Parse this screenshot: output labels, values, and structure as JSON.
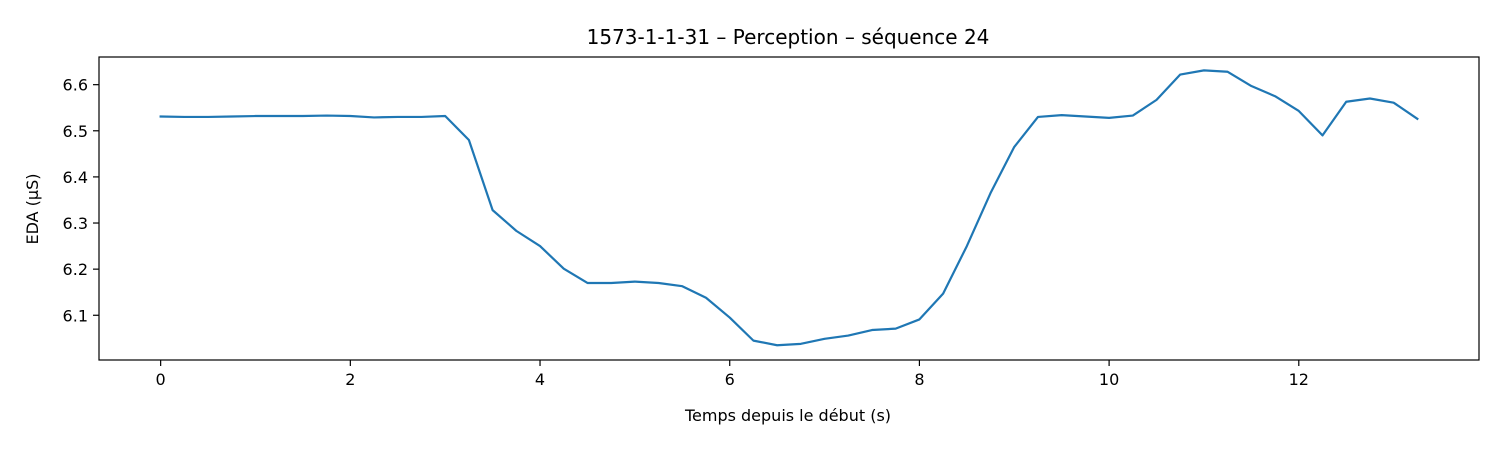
{
  "chart_data": {
    "type": "line",
    "title": "1573-1-1-31 – Perception – séquence 24",
    "xlabel": "Temps depuis le début (s)",
    "ylabel": "EDA (µS)",
    "xlim": [
      -0.65,
      13.9
    ],
    "ylim": [
      6.003,
      6.66
    ],
    "xticks": [
      0,
      2,
      4,
      6,
      8,
      10,
      12
    ],
    "yticks": [
      6.1,
      6.2,
      6.3,
      6.4,
      6.5,
      6.6
    ],
    "grid": false,
    "series": [
      {
        "color": "#1f77b4",
        "x": [
          0,
          0.25,
          0.5,
          0.75,
          1.0,
          1.25,
          1.5,
          1.75,
          2.0,
          2.25,
          2.5,
          2.75,
          3.0,
          3.25,
          3.5,
          3.75,
          4.0,
          4.25,
          4.5,
          4.75,
          5.0,
          5.25,
          5.5,
          5.75,
          6.0,
          6.25,
          6.5,
          6.75,
          7.0,
          7.25,
          7.5,
          7.75,
          8.0,
          8.25,
          8.5,
          8.75,
          9.0,
          9.25,
          9.5,
          9.75,
          10.0,
          10.25,
          10.5,
          10.75,
          11.0,
          11.25,
          11.5,
          11.75,
          12.0,
          12.25,
          12.5,
          12.75,
          13.0,
          13.25
        ],
        "y": [
          6.531,
          6.53,
          6.53,
          6.531,
          6.532,
          6.532,
          6.532,
          6.533,
          6.532,
          6.529,
          6.53,
          6.53,
          6.532,
          6.48,
          6.328,
          6.283,
          6.25,
          6.201,
          6.17,
          6.17,
          6.173,
          6.17,
          6.163,
          6.138,
          6.095,
          6.045,
          6.035,
          6.038,
          6.049,
          6.056,
          6.068,
          6.071,
          6.091,
          6.147,
          6.25,
          6.365,
          6.465,
          6.53,
          6.534,
          6.531,
          6.528,
          6.533,
          6.567,
          6.622,
          6.631,
          6.628,
          6.597,
          6.575,
          6.543,
          6.49,
          6.563,
          6.57,
          6.561,
          6.526
        ]
      }
    ]
  }
}
